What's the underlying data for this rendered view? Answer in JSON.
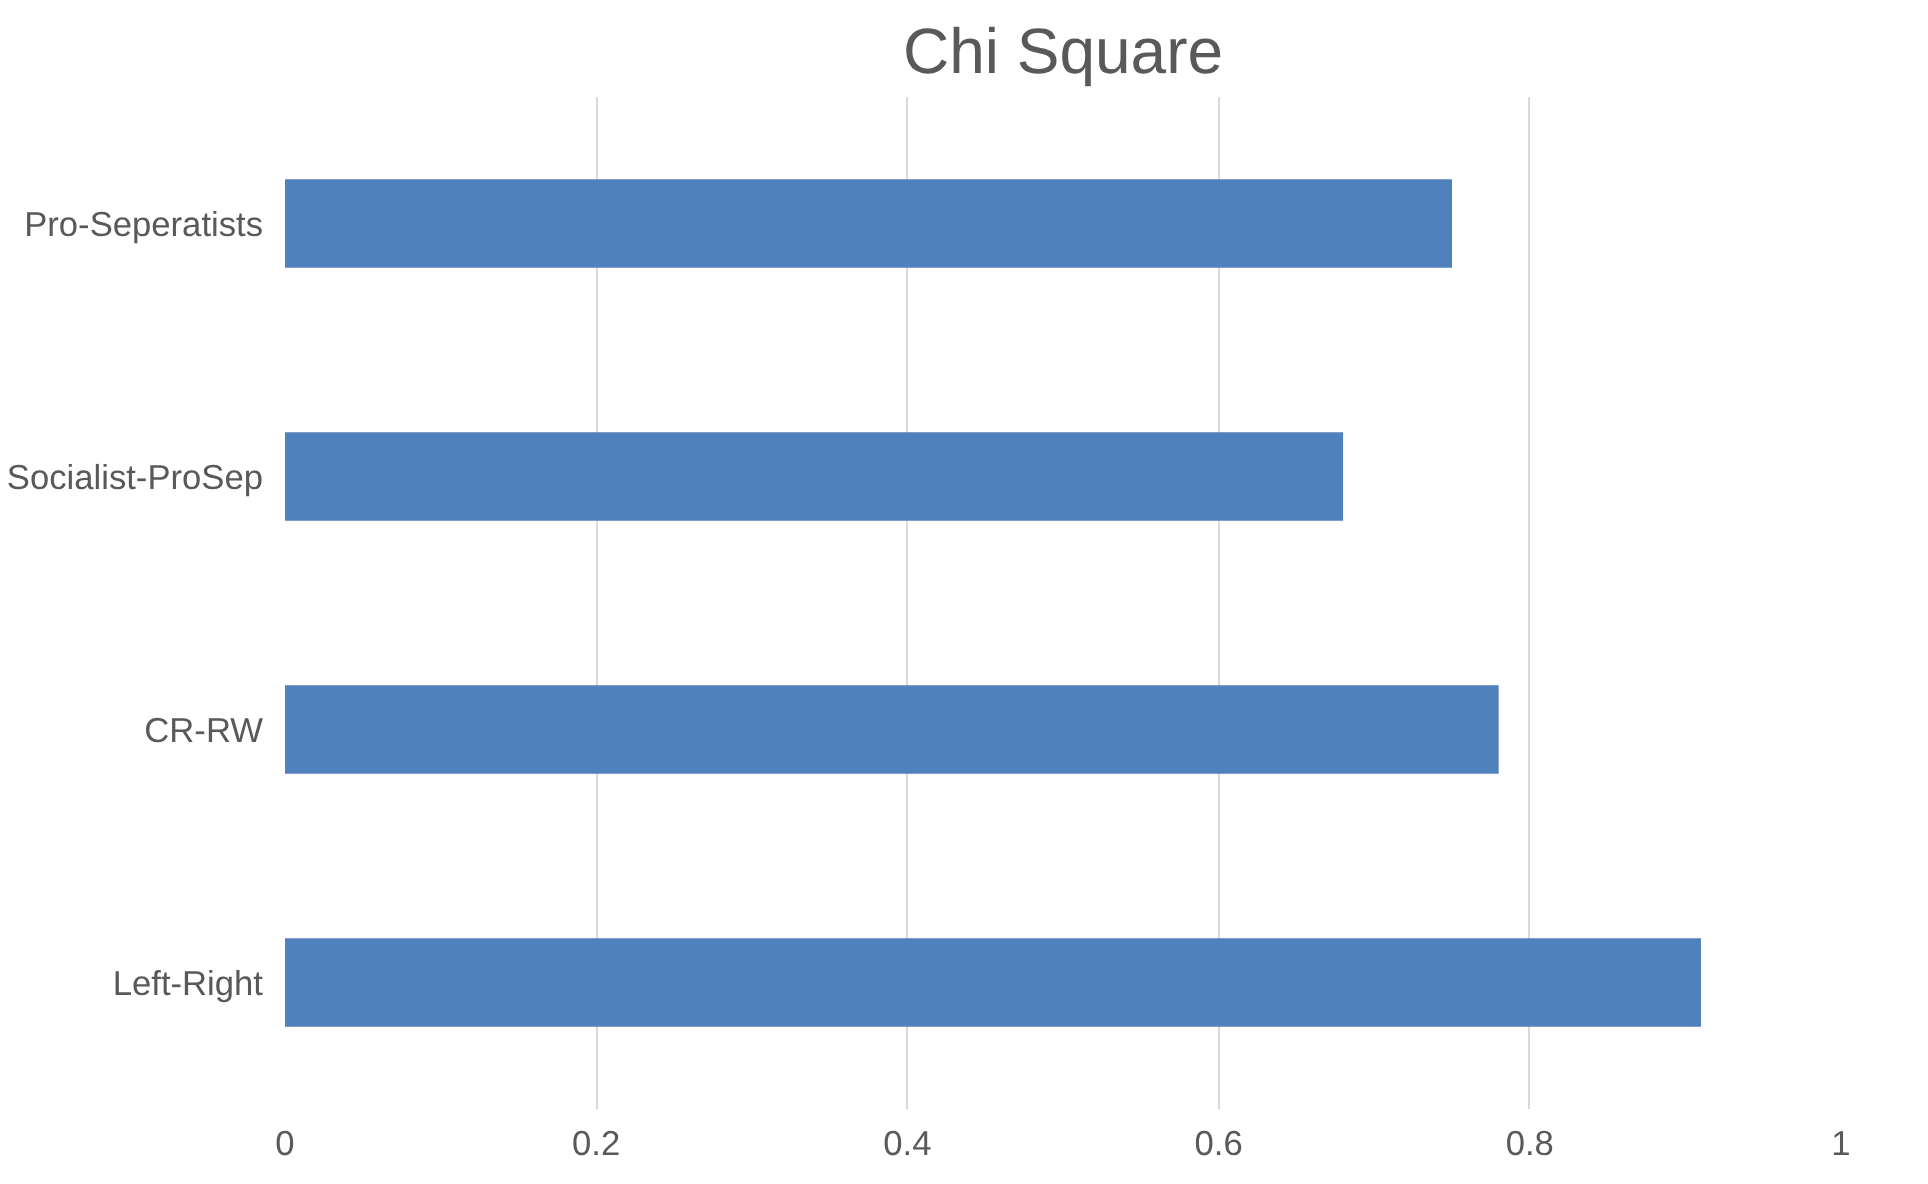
{
  "chart_data": {
    "type": "bar",
    "orientation": "horizontal",
    "title": "Chi Square",
    "categories": [
      "Pro-Seperatists",
      "Socialist-ProSep",
      "CR-RW",
      "Left-Right"
    ],
    "values": [
      0.75,
      0.68,
      0.78,
      0.91
    ],
    "color": "#4f81bd",
    "xlim": [
      0,
      1
    ],
    "xticks": [
      0,
      0.2,
      0.4,
      0.6,
      0.8,
      1
    ],
    "grid": "x"
  }
}
